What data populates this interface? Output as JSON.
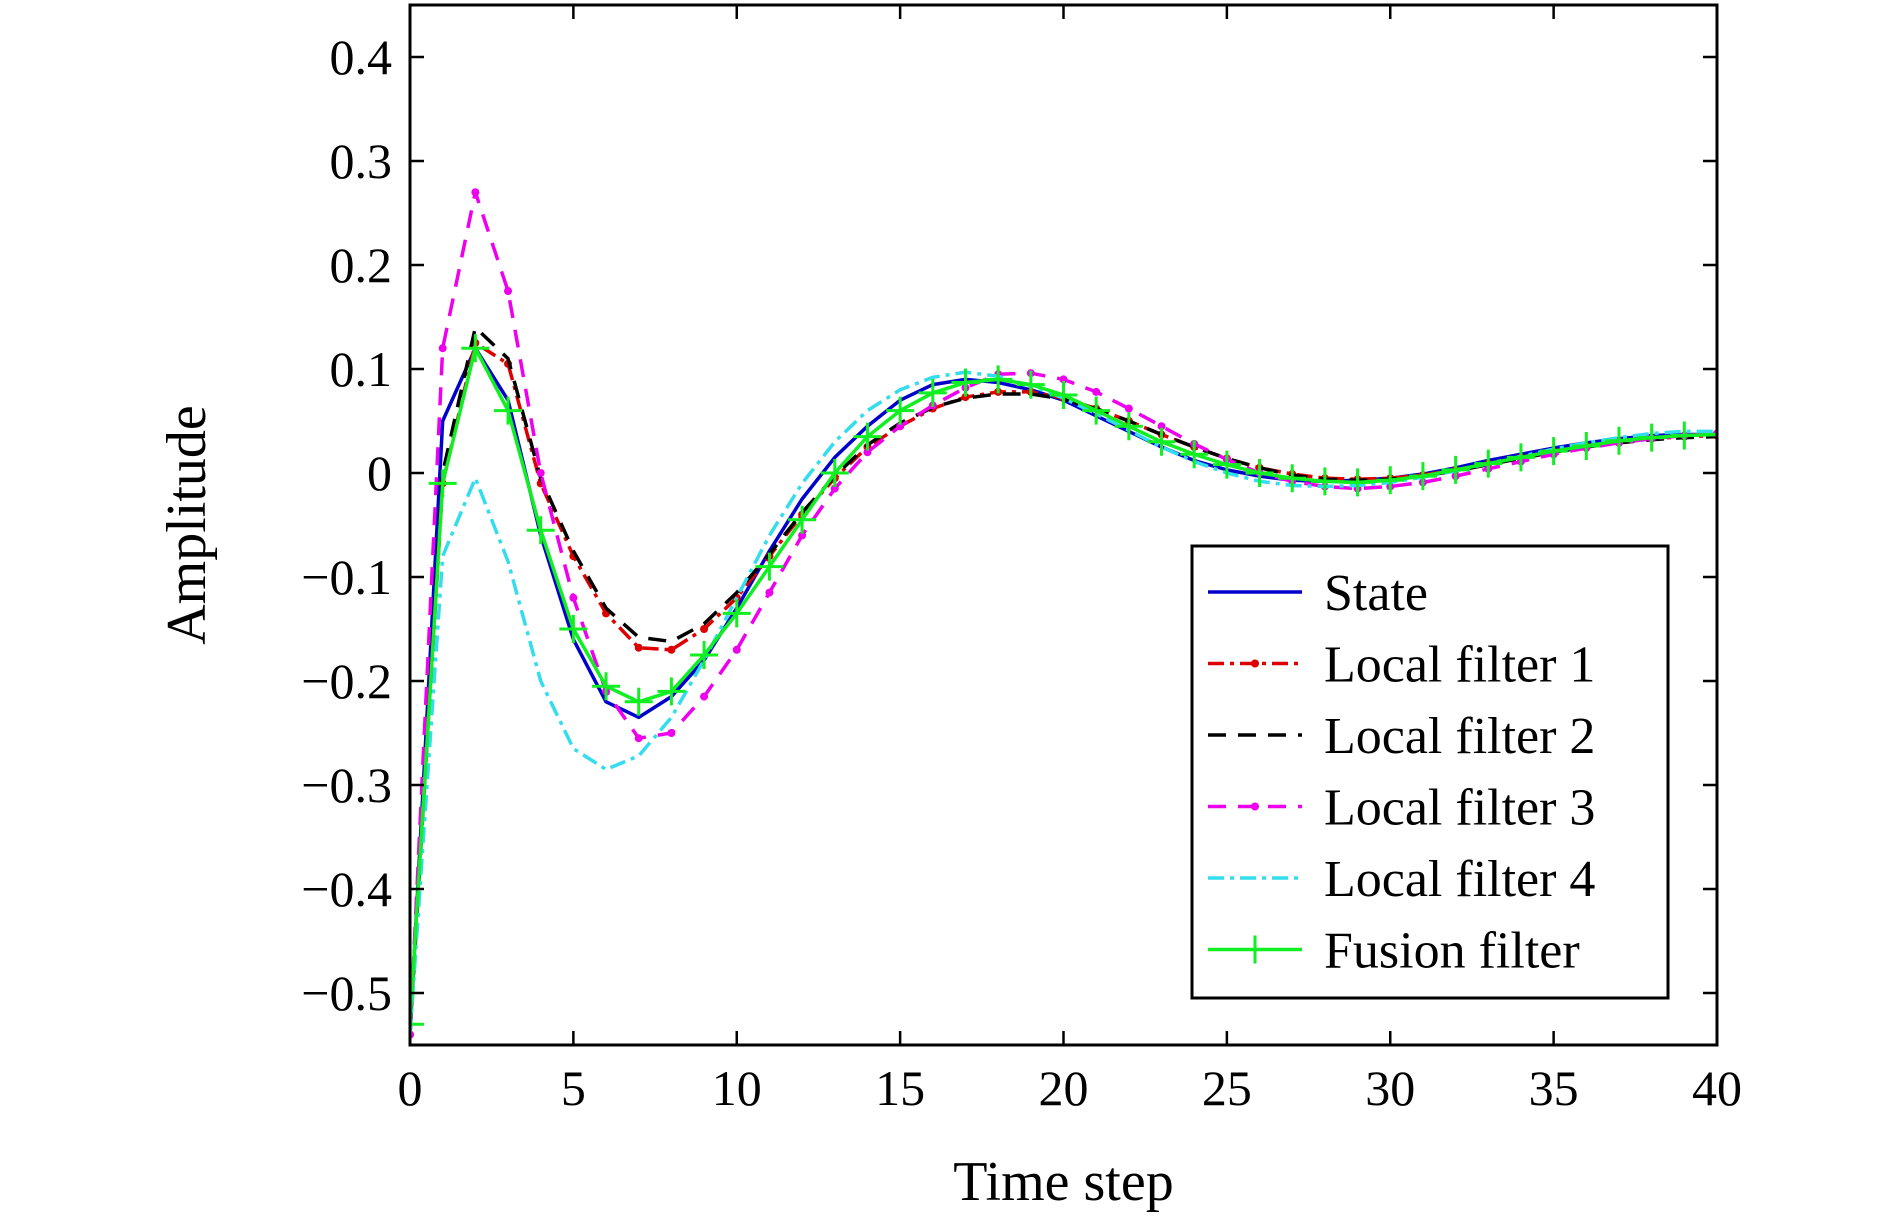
{
  "chart_data": {
    "type": "line",
    "title": "",
    "xlabel": "Time step",
    "ylabel": "Amplitude",
    "xlim": [
      0,
      40
    ],
    "ylim": [
      -0.55,
      0.45
    ],
    "xticks": [
      0,
      5,
      10,
      15,
      20,
      25,
      30,
      35,
      40
    ],
    "xtick_labels": [
      "0",
      "5",
      "10",
      "15",
      "20",
      "25",
      "30",
      "35",
      "40"
    ],
    "yticks": [
      0.4,
      0.3,
      0.2,
      0.1,
      0,
      -0.1,
      -0.2,
      -0.3,
      -0.4,
      -0.5
    ],
    "ytick_labels": [
      "0.4",
      "0.3",
      "0.2",
      "0.1",
      "0",
      "−0.1",
      "−0.2",
      "−0.3",
      "−0.4",
      "−0.5"
    ],
    "grid": false,
    "legend_position": "bottom-right",
    "x": [
      0,
      1,
      2,
      3,
      4,
      5,
      6,
      7,
      8,
      9,
      10,
      11,
      12,
      13,
      14,
      15,
      16,
      17,
      18,
      19,
      20,
      21,
      22,
      23,
      24,
      25,
      26,
      27,
      28,
      29,
      30,
      31,
      32,
      33,
      34,
      35,
      36,
      37,
      38,
      39,
      40
    ],
    "series": [
      {
        "name": "State",
        "color": "#0000cc",
        "style": "solid",
        "marker": "none",
        "values": [
          -0.54,
          0.05,
          0.12,
          0.07,
          -0.06,
          -0.16,
          -0.22,
          -0.235,
          -0.215,
          -0.18,
          -0.13,
          -0.075,
          -0.025,
          0.015,
          0.045,
          0.07,
          0.085,
          0.09,
          0.087,
          0.08,
          0.07,
          0.055,
          0.04,
          0.025,
          0.012,
          0.003,
          -0.003,
          -0.007,
          -0.008,
          -0.007,
          -0.005,
          -0.001,
          0.005,
          0.012,
          0.018,
          0.024,
          0.029,
          0.033,
          0.036,
          0.037,
          0.037
        ]
      },
      {
        "name": "Local filter 1",
        "color": "#dd0000",
        "style": "dashdot",
        "marker": "dot",
        "values": [
          -0.54,
          -0.01,
          0.125,
          0.105,
          -0.01,
          -0.08,
          -0.135,
          -0.168,
          -0.17,
          -0.15,
          -0.12,
          -0.08,
          -0.04,
          -0.005,
          0.025,
          0.045,
          0.062,
          0.073,
          0.078,
          0.078,
          0.072,
          0.062,
          0.05,
          0.037,
          0.025,
          0.014,
          0.005,
          -0.001,
          -0.005,
          -0.006,
          -0.005,
          -0.002,
          0.003,
          0.009,
          0.015,
          0.021,
          0.026,
          0.03,
          0.033,
          0.035,
          0.036
        ]
      },
      {
        "name": "Local filter 2",
        "color": "#000000",
        "style": "dashed",
        "marker": "none",
        "values": [
          -0.54,
          0.0,
          0.14,
          0.11,
          -0.005,
          -0.075,
          -0.13,
          -0.158,
          -0.162,
          -0.145,
          -0.115,
          -0.078,
          -0.038,
          -0.003,
          0.027,
          0.048,
          0.063,
          0.072,
          0.076,
          0.076,
          0.071,
          0.062,
          0.05,
          0.037,
          0.025,
          0.014,
          0.005,
          -0.002,
          -0.006,
          -0.007,
          -0.006,
          -0.003,
          0.002,
          0.008,
          0.014,
          0.02,
          0.025,
          0.029,
          0.032,
          0.034,
          0.035
        ]
      },
      {
        "name": "Local filter 3",
        "color": "#ee00ee",
        "style": "dashed",
        "marker": "dot",
        "values": [
          -0.54,
          0.12,
          0.27,
          0.175,
          0.0,
          -0.12,
          -0.21,
          -0.255,
          -0.25,
          -0.215,
          -0.17,
          -0.115,
          -0.06,
          -0.015,
          0.02,
          0.045,
          0.065,
          0.082,
          0.095,
          0.096,
          0.09,
          0.078,
          0.062,
          0.045,
          0.028,
          0.013,
          0.0,
          -0.008,
          -0.013,
          -0.015,
          -0.013,
          -0.009,
          -0.003,
          0.004,
          0.011,
          0.018,
          0.024,
          0.029,
          0.033,
          0.036,
          0.038
        ]
      },
      {
        "name": "Local filter 4",
        "color": "#33ddee",
        "style": "dashdot",
        "marker": "none",
        "values": [
          -0.54,
          -0.08,
          -0.005,
          -0.085,
          -0.2,
          -0.265,
          -0.285,
          -0.272,
          -0.235,
          -0.18,
          -0.12,
          -0.06,
          -0.01,
          0.03,
          0.06,
          0.08,
          0.092,
          0.097,
          0.093,
          0.084,
          0.072,
          0.057,
          0.041,
          0.025,
          0.011,
          0.0,
          -0.008,
          -0.012,
          -0.013,
          -0.012,
          -0.009,
          -0.004,
          0.002,
          0.009,
          0.016,
          0.023,
          0.029,
          0.034,
          0.038,
          0.04,
          0.04
        ]
      },
      {
        "name": "Fusion filter",
        "color": "#11ee22",
        "style": "solid",
        "marker": "plus",
        "values": [
          -0.53,
          -0.01,
          0.12,
          0.06,
          -0.055,
          -0.15,
          -0.205,
          -0.22,
          -0.21,
          -0.175,
          -0.135,
          -0.09,
          -0.045,
          0.0,
          0.035,
          0.06,
          0.077,
          0.087,
          0.09,
          0.085,
          0.075,
          0.06,
          0.045,
          0.03,
          0.018,
          0.008,
          0.0,
          -0.005,
          -0.008,
          -0.009,
          -0.007,
          -0.003,
          0.003,
          0.009,
          0.015,
          0.021,
          0.026,
          0.031,
          0.034,
          0.036,
          0.037
        ]
      }
    ]
  }
}
